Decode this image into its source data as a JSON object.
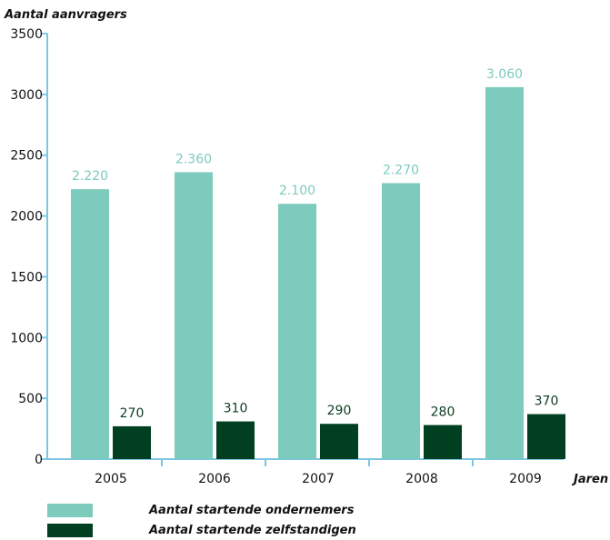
{
  "colors": {
    "series1": "#7ccbbd",
    "series2": "#003f1f",
    "axis": "#7cc6e3"
  },
  "chart_data": {
    "type": "bar",
    "ylabel": "Aantal aanvragers",
    "xlabel": "Jaren",
    "ylim": [
      0,
      3500
    ],
    "yticks": [
      0,
      500,
      1000,
      1500,
      2000,
      2500,
      3000,
      3500
    ],
    "grid": false,
    "legend_position": "bottom-left",
    "categories": [
      "2005",
      "2006",
      "2007",
      "2008",
      "2009"
    ],
    "series": [
      {
        "name": "Aantal startende ondernemers",
        "values": [
          2220,
          2360,
          2100,
          2270,
          3060
        ],
        "labels": [
          "2.220",
          "2.360",
          "2.100",
          "2.270",
          "3.060"
        ]
      },
      {
        "name": "Aantal startende zelfstandigen",
        "values": [
          270,
          310,
          290,
          280,
          370
        ],
        "labels": [
          "270",
          "310",
          "290",
          "280",
          "370"
        ]
      }
    ]
  }
}
